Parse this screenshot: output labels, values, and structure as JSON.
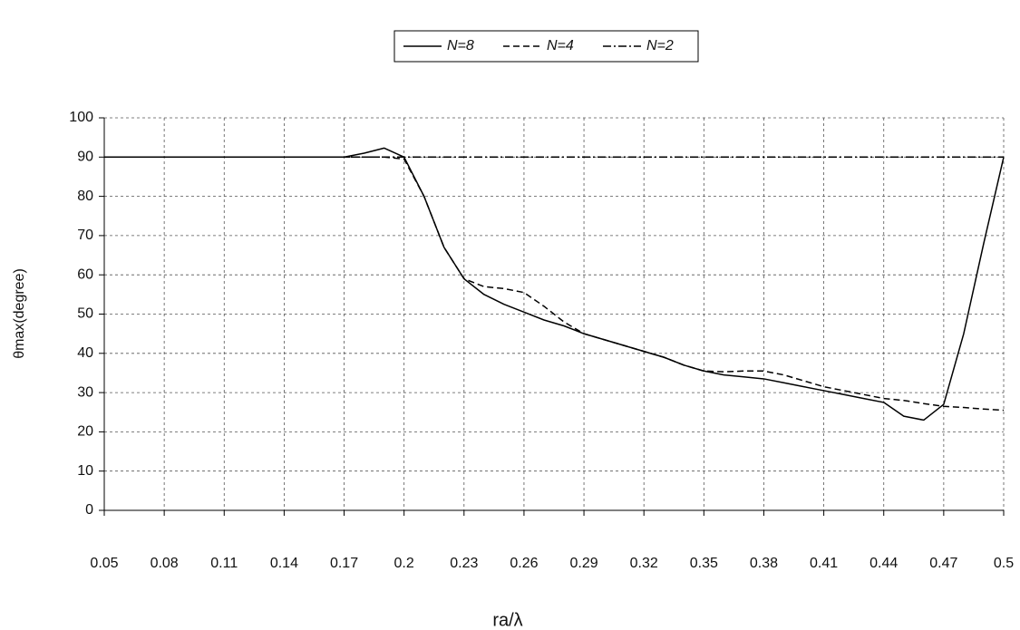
{
  "chart_data": {
    "type": "line",
    "xlabel": "ra/λ",
    "ylabel": "θmax(degree)",
    "x": [
      0.05,
      0.06,
      0.07,
      0.08,
      0.09,
      0.1,
      0.11,
      0.12,
      0.13,
      0.14,
      0.15,
      0.16,
      0.17,
      0.18,
      0.19,
      0.2,
      0.21,
      0.22,
      0.23,
      0.24,
      0.25,
      0.26,
      0.27,
      0.28,
      0.29,
      0.3,
      0.31,
      0.32,
      0.33,
      0.34,
      0.35,
      0.36,
      0.37,
      0.38,
      0.39,
      0.4,
      0.41,
      0.42,
      0.43,
      0.44,
      0.45,
      0.46,
      0.47,
      0.48,
      0.49,
      0.5
    ],
    "series": [
      {
        "name": "N=8",
        "color": "#000000",
        "style": "solid",
        "values": [
          90,
          90,
          90,
          90,
          90,
          90,
          90,
          90,
          90,
          90,
          90,
          90,
          90,
          91,
          92.3,
          90,
          80,
          67,
          59,
          55,
          52.5,
          50.5,
          48.5,
          47,
          45,
          43.5,
          42,
          40.5,
          39,
          37,
          35.5,
          34.5,
          34,
          33.5,
          32.5,
          31.5,
          30.5,
          29.5,
          28.5,
          27.5,
          24,
          23,
          27,
          45,
          68,
          90
        ]
      },
      {
        "name": "N=4",
        "color": "#000000",
        "style": "dashed",
        "values": [
          90,
          90,
          90,
          90,
          90,
          90,
          90,
          90,
          90,
          90,
          90,
          90,
          90,
          90,
          90,
          89.5,
          80,
          67,
          59,
          57,
          56.5,
          55.5,
          52,
          48,
          45,
          43.5,
          42,
          40.5,
          39,
          37,
          35.5,
          35.3,
          35.5,
          35.5,
          34.5,
          33,
          31.5,
          30.5,
          29.5,
          28.5,
          28,
          27.2,
          26.5,
          26.2,
          25.8,
          25.5
        ]
      },
      {
        "name": "N=2",
        "color": "#000000",
        "style": "dashdot",
        "values": [
          90,
          90,
          90,
          90,
          90,
          90,
          90,
          90,
          90,
          90,
          90,
          90,
          90,
          90,
          90,
          90,
          90,
          90,
          90,
          90,
          90,
          90,
          90,
          90,
          90,
          90,
          90,
          90,
          90,
          90,
          90,
          90,
          90,
          90,
          90,
          90,
          90,
          90,
          90,
          90,
          90,
          90,
          90,
          90,
          90,
          90
        ]
      }
    ],
    "xlim": [
      0.05,
      0.5
    ],
    "xticks": [
      0.05,
      0.08,
      0.11,
      0.14,
      0.17,
      0.2,
      0.23,
      0.26,
      0.29,
      0.32,
      0.35,
      0.38,
      0.41,
      0.44,
      0.47,
      0.5
    ],
    "ylim": [
      0,
      100
    ],
    "yticks": [
      0,
      10,
      20,
      30,
      40,
      50,
      60,
      70,
      80,
      90,
      100
    ],
    "grid": true,
    "legend": "top"
  }
}
